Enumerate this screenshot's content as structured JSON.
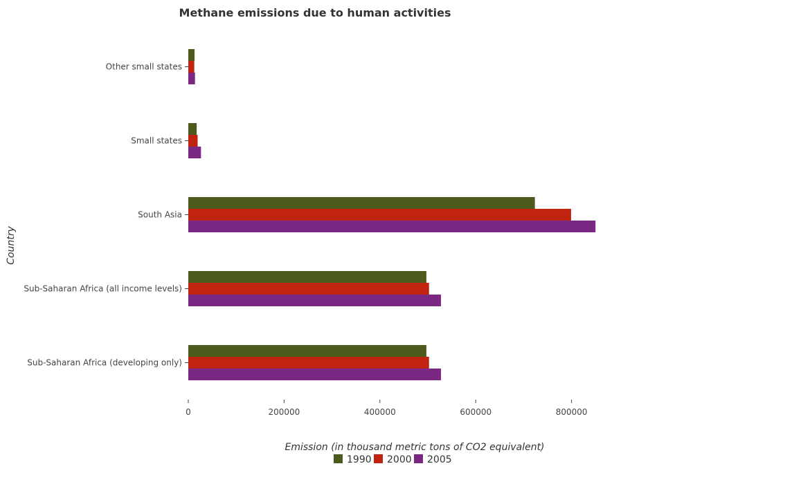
{
  "chart_data": {
    "type": "bar",
    "orientation": "horizontal",
    "title": "Methane emissions due to human activities",
    "xlabel": "Emission (in thousand metric tons of CO2 equivalent)",
    "ylabel": "Country",
    "xlim": [
      0,
      880000
    ],
    "x_ticks": [
      0,
      200000,
      400000,
      600000,
      800000
    ],
    "x_tick_labels": [
      "0",
      "200000",
      "400000",
      "600000",
      "800000"
    ],
    "grid": false,
    "legend_position": "bottom-center",
    "categories": [
      "Other small states",
      "Small states",
      "South Asia",
      "Sub-Saharan Africa (all income levels)",
      "Sub-Saharan Africa (developing only)"
    ],
    "series": [
      {
        "name": "1990",
        "color": "#4d5a1e",
        "values": [
          13000,
          17500,
          723500,
          497000,
          497000
        ]
      },
      {
        "name": "2000",
        "color": "#c0230f",
        "values": [
          12500,
          19500,
          799000,
          502500,
          502500
        ]
      },
      {
        "name": "2005",
        "color": "#7b2884",
        "values": [
          14000,
          26500,
          850000,
          527500,
          527500
        ]
      }
    ]
  }
}
